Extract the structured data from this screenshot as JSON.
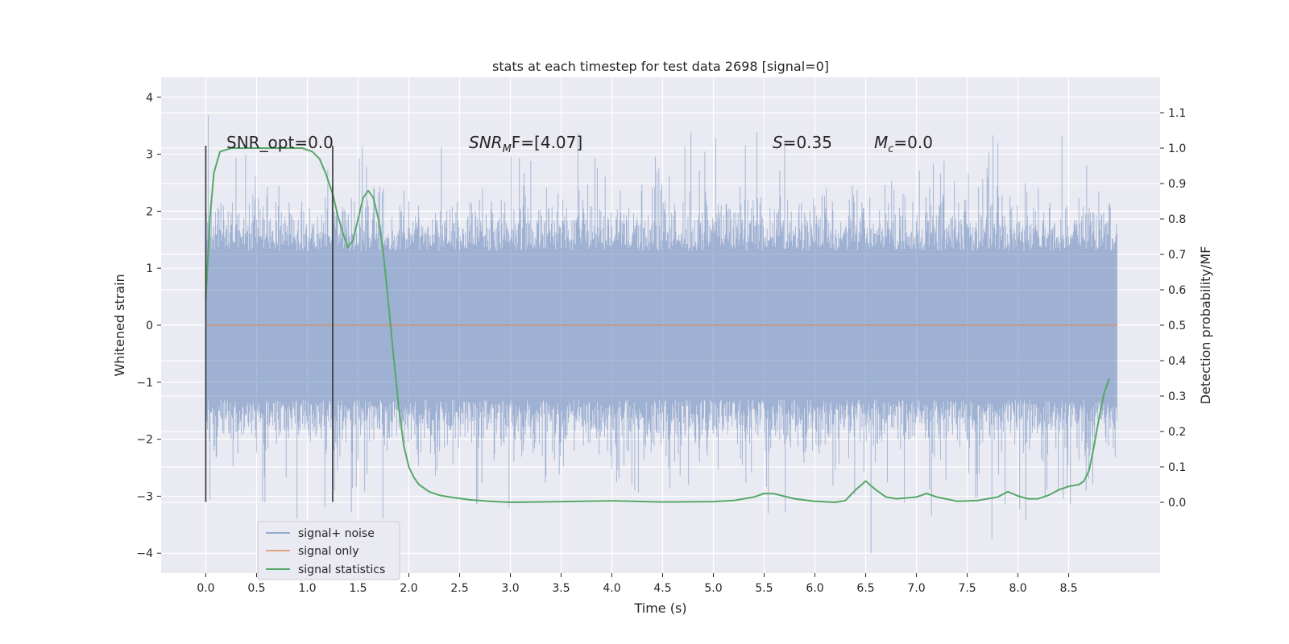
{
  "chart_data": {
    "type": "line",
    "title": "stats at each timestep for test data 2698 [signal=0]",
    "xlabel": "Time (s)",
    "ylabel": "Whitened strain",
    "ylabel_right": "Detection probability/MF",
    "xlim": [
      -0.44,
      9.4
    ],
    "ylim": [
      -4.35,
      4.35
    ],
    "ylim_right": [
      -0.2,
      1.2
    ],
    "x_ticks": [
      0.0,
      0.5,
      1.0,
      1.5,
      2.0,
      2.5,
      3.0,
      3.5,
      4.0,
      4.5,
      5.0,
      5.5,
      6.0,
      6.5,
      7.0,
      7.5,
      8.0,
      8.5
    ],
    "x_tick_labels": [
      "0.0",
      "0.5",
      "1.0",
      "1.5",
      "2.0",
      "2.5",
      "3.0",
      "3.5",
      "4.0",
      "4.5",
      "5.0",
      "5.5",
      "6.0",
      "6.5",
      "7.0",
      "7.5",
      "8.0",
      "8.5"
    ],
    "y_ticks": [
      -4,
      -3,
      -2,
      -1,
      0,
      1,
      2,
      3,
      4
    ],
    "y_tick_labels": [
      "−4",
      "−3",
      "−2",
      "−1",
      "0",
      "1",
      "2",
      "3",
      "4"
    ],
    "y_right_ticks": [
      0.0,
      0.1,
      0.2,
      0.3,
      0.4,
      0.5,
      0.6,
      0.7,
      0.8,
      0.9,
      1.0,
      1.1
    ],
    "y_right_tick_labels": [
      "0.0",
      "0.1",
      "0.2",
      "0.3",
      "0.4",
      "0.5",
      "0.6",
      "0.7",
      "0.8",
      "0.9",
      "1.0",
      "1.1"
    ],
    "grid": true,
    "legend_position": "lower-left",
    "colors": {
      "noise": "#4c72b0",
      "signal_only": "#dd8452",
      "statistics": "#55a868",
      "marker": "#333333",
      "background": "#eaeaf2"
    },
    "annotations": [
      {
        "text": "SNR_opt=0.0",
        "x": 0.2,
        "y": 3.2
      },
      {
        "main": "SNR",
        "sub": "M",
        "rest": "F=[4.07]",
        "x": 2.6,
        "y": 3.2
      },
      {
        "main": "S",
        "sub": "",
        "rest": "=0.35",
        "x": 5.6,
        "y": 3.2
      },
      {
        "main": "M",
        "sub": "c",
        "rest": "=0.0",
        "x": 6.6,
        "y": 3.2
      }
    ],
    "vertical_markers": [
      {
        "x": 0.0,
        "y_range": [
          -3.1,
          3.15
        ]
      },
      {
        "x": 1.25,
        "y_range": [
          -3.1,
          3.15
        ]
      }
    ],
    "series": [
      {
        "name": "signal+ noise",
        "role": "noise",
        "x_range": [
          0.0,
          8.98
        ],
        "envelope_typical": 1.3,
        "envelope_max": 4.0
      },
      {
        "name": "signal only",
        "role": "signal_only",
        "x": [
          0.0,
          8.98
        ],
        "y": [
          0.0,
          0.0
        ]
      },
      {
        "name": "signal statistics",
        "role": "statistics",
        "axis": "right",
        "x": [
          0.0,
          0.04,
          0.08,
          0.14,
          0.25,
          0.4,
          0.6,
          0.8,
          0.95,
          1.05,
          1.12,
          1.18,
          1.25,
          1.3,
          1.35,
          1.4,
          1.45,
          1.5,
          1.55,
          1.6,
          1.65,
          1.7,
          1.75,
          1.8,
          1.85,
          1.9,
          1.95,
          2.0,
          2.05,
          2.1,
          2.2,
          2.3,
          2.4,
          2.6,
          2.8,
          3.0,
          3.5,
          4.0,
          4.5,
          5.0,
          5.2,
          5.4,
          5.5,
          5.6,
          5.8,
          6.0,
          6.2,
          6.3,
          6.4,
          6.5,
          6.6,
          6.7,
          6.8,
          7.0,
          7.1,
          7.2,
          7.4,
          7.6,
          7.8,
          7.9,
          8.0,
          8.1,
          8.2,
          8.3,
          8.4,
          8.5,
          8.6,
          8.65,
          8.7,
          8.75,
          8.8,
          8.85,
          8.9
        ],
        "y": [
          0.57,
          0.8,
          0.93,
          0.99,
          1.0,
          1.0,
          1.0,
          1.0,
          1.0,
          0.99,
          0.97,
          0.93,
          0.87,
          0.81,
          0.76,
          0.72,
          0.74,
          0.8,
          0.86,
          0.88,
          0.86,
          0.8,
          0.7,
          0.56,
          0.41,
          0.27,
          0.16,
          0.1,
          0.07,
          0.05,
          0.03,
          0.02,
          0.015,
          0.007,
          0.003,
          0.0,
          0.002,
          0.004,
          0.001,
          0.002,
          0.005,
          0.015,
          0.025,
          0.024,
          0.01,
          0.003,
          0.0,
          0.005,
          0.035,
          0.06,
          0.035,
          0.015,
          0.01,
          0.015,
          0.025,
          0.015,
          0.003,
          0.005,
          0.015,
          0.03,
          0.018,
          0.01,
          0.01,
          0.02,
          0.035,
          0.045,
          0.05,
          0.06,
          0.09,
          0.16,
          0.24,
          0.31,
          0.35
        ]
      }
    ]
  }
}
